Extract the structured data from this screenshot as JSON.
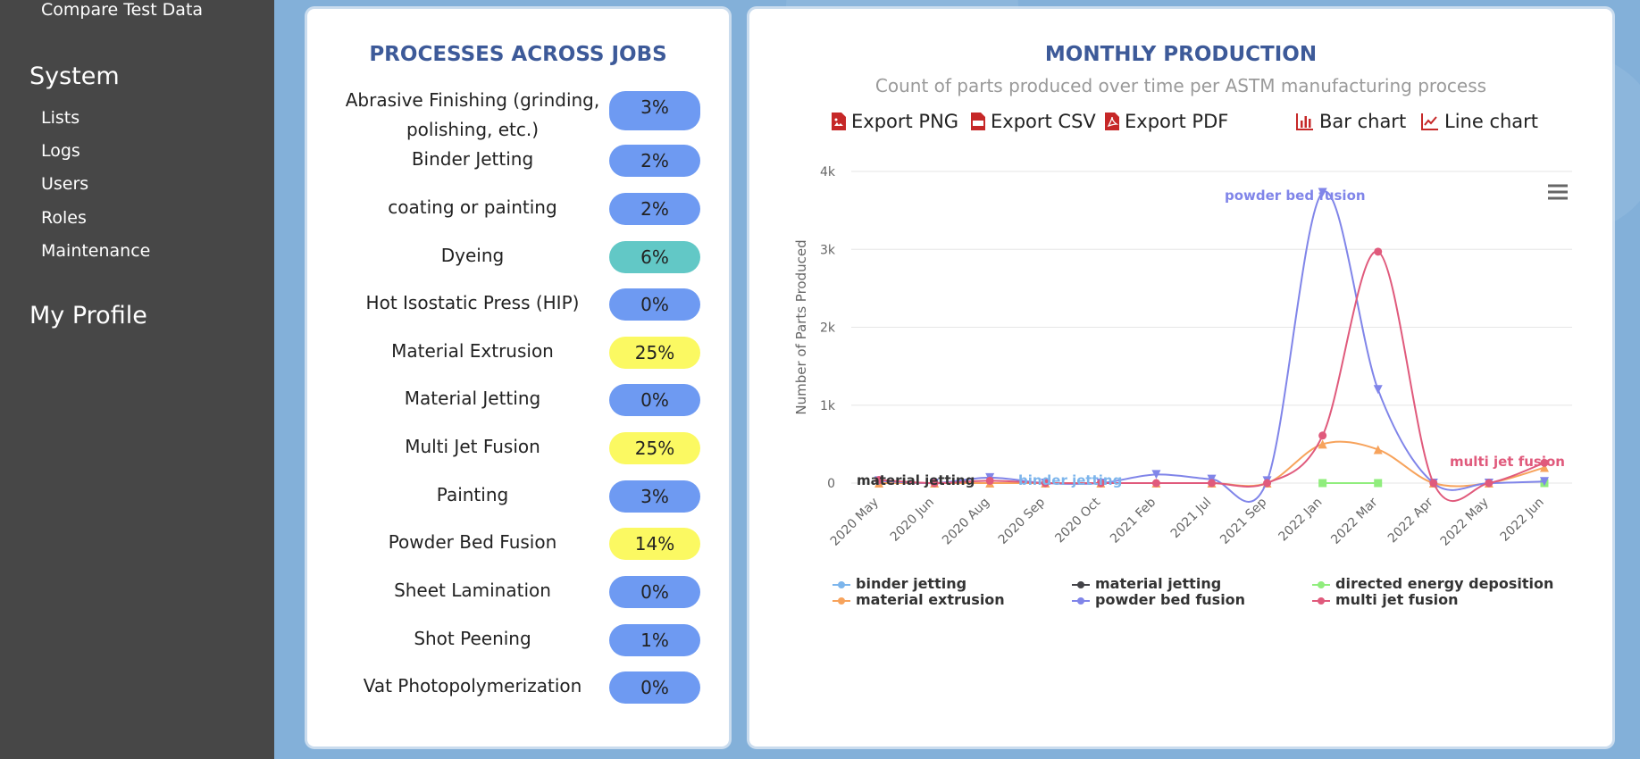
{
  "sidebar": {
    "top_item": "Compare Test Data",
    "system_heading": "System",
    "system_items": [
      "Lists",
      "Logs",
      "Users",
      "Roles",
      "Maintenance"
    ],
    "profile_heading": "My Profile"
  },
  "processes": {
    "title": "PROCESSES ACROSS JOBS",
    "rows": [
      {
        "name": "Abrasive Finishing (grinding, polishing, etc.)",
        "pct": "3%",
        "color": "#6e9af2"
      },
      {
        "name": "Binder Jetting",
        "pct": "2%",
        "color": "#6e9af2"
      },
      {
        "name": "coating or painting",
        "pct": "2%",
        "color": "#6e9af2"
      },
      {
        "name": "Dyeing",
        "pct": "6%",
        "color": "#62c8c6"
      },
      {
        "name": "Hot Isostatic Press (HIP)",
        "pct": "0%",
        "color": "#6e9af2"
      },
      {
        "name": "Material Extrusion",
        "pct": "25%",
        "color": "#fbf962"
      },
      {
        "name": "Material Jetting",
        "pct": "0%",
        "color": "#6e9af2"
      },
      {
        "name": "Multi Jet Fusion",
        "pct": "25%",
        "color": "#fbf962"
      },
      {
        "name": "Painting",
        "pct": "3%",
        "color": "#6e9af2"
      },
      {
        "name": "Powder Bed Fusion",
        "pct": "14%",
        "color": "#fbf962"
      },
      {
        "name": "Sheet Lamination",
        "pct": "0%",
        "color": "#6e9af2"
      },
      {
        "name": "Shot Peening",
        "pct": "1%",
        "color": "#6e9af2"
      },
      {
        "name": "Vat Photopolymerization",
        "pct": "0%",
        "color": "#6e9af2"
      }
    ]
  },
  "production": {
    "title": "MONTHLY PRODUCTION",
    "subtitle": "Count of parts produced over time per ASTM manufacturing process",
    "toolbar": {
      "export_png": "Export PNG",
      "export_csv": "Export CSV",
      "export_pdf": "Export PDF",
      "bar_chart": "Bar chart",
      "line_chart": "Line chart"
    }
  },
  "chart_data": {
    "type": "line",
    "title": "MONTHLY PRODUCTION",
    "subtitle": "Count of parts produced over time per ASTM manufacturing process",
    "ylabel": "Number of Parts Produced",
    "xlabel": "",
    "ylim": [
      0,
      4000
    ],
    "yticks": [
      "0",
      "1k",
      "2k",
      "3k",
      "4k"
    ],
    "ytick_values": [
      0,
      1000,
      2000,
      3000,
      4000
    ],
    "categories": [
      "2020 May",
      "2020 Jun",
      "2020 Aug",
      "2020 Sep",
      "2020 Oct",
      "2021 Feb",
      "2021 Jul",
      "2021 Sep",
      "2022 Jan",
      "2022 Mar",
      "2022 Apr",
      "2022 May",
      "2022 Jun"
    ],
    "grid": true,
    "legend_position": "bottom",
    "series": [
      {
        "name": "binder jetting",
        "color": "#7cb5ec",
        "marker": "circle",
        "values": [
          null,
          null,
          null,
          0,
          0,
          null,
          null,
          null,
          null,
          null,
          null,
          null,
          null
        ]
      },
      {
        "name": "material jetting",
        "color": "#434348",
        "marker": "diamond",
        "values": [
          20,
          null,
          null,
          null,
          null,
          null,
          null,
          null,
          null,
          null,
          null,
          null,
          null
        ]
      },
      {
        "name": "directed energy deposition",
        "color": "#90ed7d",
        "marker": "square",
        "values": [
          null,
          null,
          null,
          null,
          null,
          null,
          null,
          null,
          0,
          0,
          null,
          null,
          0
        ]
      },
      {
        "name": "material extrusion",
        "color": "#f7a35c",
        "marker": "triangle",
        "values": [
          0,
          0,
          0,
          0,
          0,
          0,
          0,
          0,
          500,
          430,
          0,
          0,
          200
        ]
      },
      {
        "name": "powder bed fusion",
        "color": "#8085e9",
        "marker": "triangle-down",
        "values": [
          30,
          0,
          70,
          0,
          0,
          110,
          50,
          30,
          3730,
          1200,
          0,
          0,
          20
        ]
      },
      {
        "name": "multi jet fusion",
        "color": "#e05a7c",
        "marker": "circle",
        "values": [
          40,
          0,
          30,
          0,
          0,
          0,
          0,
          0,
          610,
          2970,
          0,
          0,
          260
        ]
      }
    ],
    "annotations": [
      {
        "text": "material jetting",
        "color": "#333333"
      },
      {
        "text": "binder jetting",
        "color": "#7cb5ec"
      },
      {
        "text": "powder bed fusion",
        "color": "#8085e9"
      },
      {
        "text": "multi jet fusion",
        "color": "#e05a7c"
      }
    ]
  }
}
